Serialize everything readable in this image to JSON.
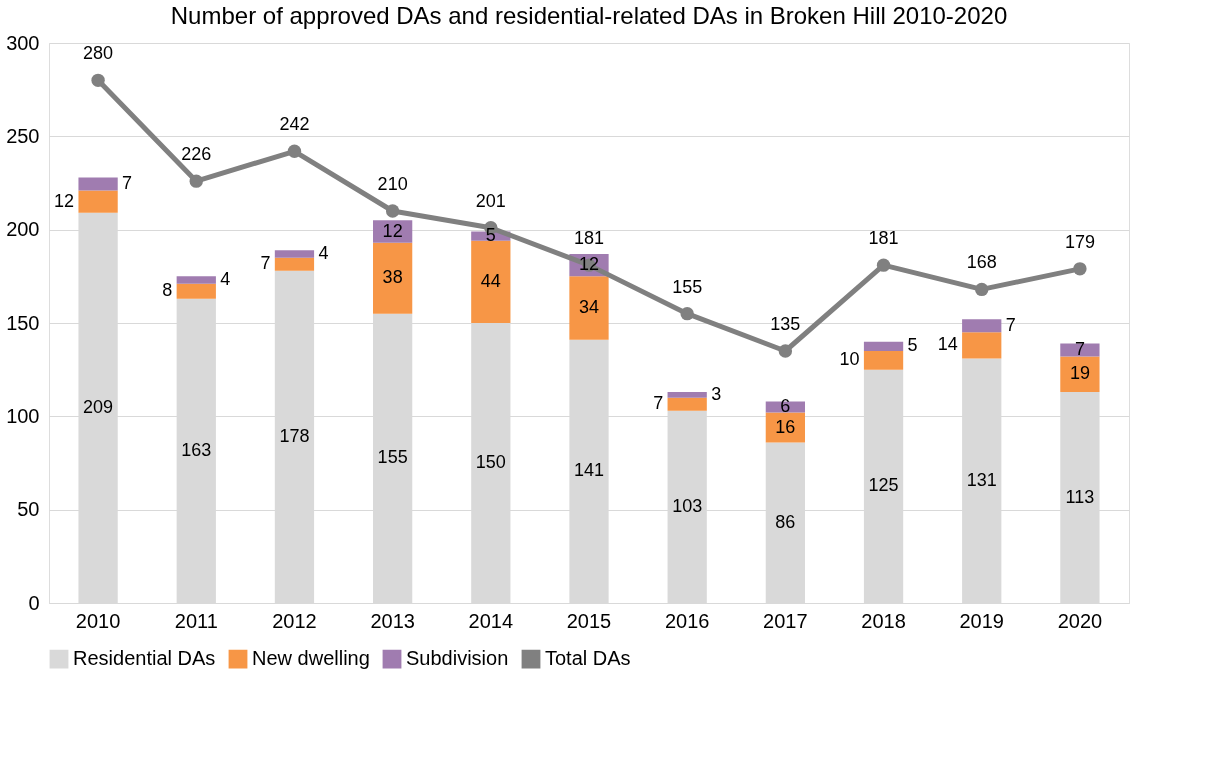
{
  "chart_data": {
    "type": "bar",
    "title": "Number of approved DAs and residential-related DAs in Broken Hill 2010-2020",
    "categories": [
      "2010",
      "2011",
      "2012",
      "2013",
      "2014",
      "2015",
      "2016",
      "2017",
      "2018",
      "2019",
      "2020"
    ],
    "stacked": true,
    "series": [
      {
        "name": "Residential DAs",
        "color": "#d9d9d9",
        "values": [
          209,
          163,
          178,
          155,
          150,
          141,
          103,
          86,
          125,
          131,
          113
        ]
      },
      {
        "name": "New dwelling",
        "color": "#f79646",
        "values": [
          12,
          8,
          7,
          38,
          44,
          34,
          7,
          16,
          10,
          14,
          19
        ]
      },
      {
        "name": "Subdivision",
        "color": "#a07cb0",
        "values": [
          7,
          4,
          4,
          12,
          5,
          12,
          3,
          6,
          5,
          7,
          7
        ]
      },
      {
        "name": "Total DAs",
        "type": "line",
        "color": "#808080",
        "marker": "circle",
        "values": [
          280,
          226,
          242,
          210,
          201,
          181,
          155,
          135,
          181,
          168,
          179
        ]
      }
    ],
    "ylim": [
      0,
      300
    ],
    "yticks": [
      0,
      50,
      100,
      150,
      200,
      250,
      300
    ],
    "grid": "y",
    "legend": "bottom",
    "data_labels": true
  }
}
